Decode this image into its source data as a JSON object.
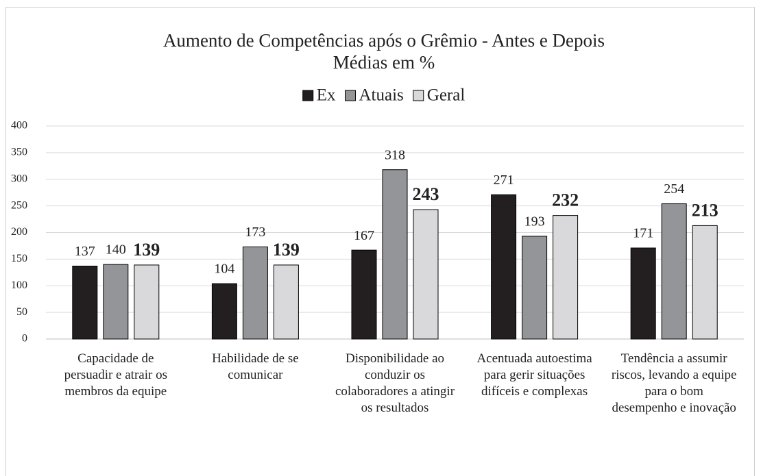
{
  "chart_data": {
    "type": "bar",
    "title": "Aumento de Competências após o Grêmio - Antes e Depois",
    "subtitle": "Médias em %",
    "categories": [
      "Capacidade de persuadir e atrair os membros da equipe",
      "Habilidade de se comunicar",
      "Disponibilidade ao conduzir os colaboradores a atingir os resultados",
      "Acentuada autoestima para gerir situações difíceis e complexas",
      "Tendência a assumir riscos, levando a equipe para o bom desempenho e inovação"
    ],
    "series": [
      {
        "name": "Ex",
        "color": "#231f20",
        "values": [
          137,
          104,
          167,
          271,
          171
        ]
      },
      {
        "name": "Atuais",
        "color": "#939598",
        "values": [
          140,
          173,
          318,
          193,
          254
        ]
      },
      {
        "name": "Geral",
        "color": "#d9d9db",
        "values": [
          139,
          139,
          243,
          232,
          213
        ]
      }
    ],
    "ylim": [
      0,
      400
    ],
    "yticks": [
      0,
      50,
      100,
      150,
      200,
      250,
      300,
      350,
      400
    ],
    "grid": true,
    "legend": "top"
  }
}
